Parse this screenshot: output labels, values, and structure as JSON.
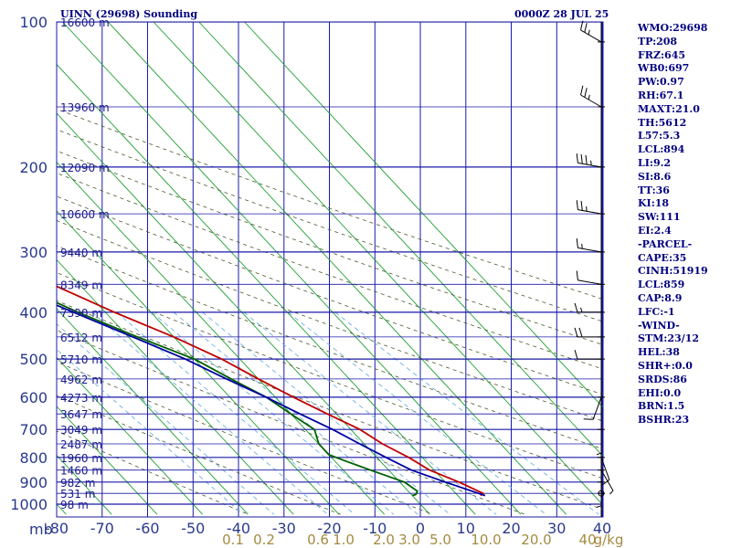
{
  "header": {
    "title": "UINN (29698) Sounding",
    "datetime": "0000Z 28 JUL 25"
  },
  "stats": [
    "WMO:29698",
    "TP:208",
    "FRZ:645",
    "WB0:697",
    "PW:0.97",
    "RH:67.1",
    "MAXT:21.0",
    "TH:5612",
    "L57:5.3",
    "LCL:894",
    "LI:9.2",
    "SI:8.6",
    "TT:36",
    "KI:18",
    "SW:111",
    "EI:2.4",
    "-PARCEL-",
    "CAPE:35",
    "CINH:51919",
    "LCL:859",
    "CAP:8.9",
    "LFC:-1",
    "-WIND-",
    "STM:23/12",
    "HEL:38",
    "SHR+:0.0",
    "SRDS:86",
    "EHI:0.0",
    "BRN:1.5",
    "BSHR:23"
  ],
  "chart_data": {
    "type": "line",
    "subtype": "skew-T log-P sounding",
    "pressure_axis": {
      "unit_label": "mb",
      "ticks": [
        100,
        200,
        300,
        400,
        500,
        600,
        700,
        800,
        900,
        1000
      ],
      "range": [
        100,
        1050
      ],
      "scale": "log"
    },
    "temperature_axis": {
      "ticks": [
        -80,
        -70,
        -60,
        -50,
        -40,
        -30,
        -20,
        -10,
        0,
        10,
        20,
        30,
        40
      ],
      "range": [
        -80,
        40
      ]
    },
    "height_labels": [
      {
        "p": 100,
        "label": "16600 m"
      },
      {
        "p": 150,
        "label": "13960 m"
      },
      {
        "p": 200,
        "label": "12090 m"
      },
      {
        "p": 250,
        "label": "10600 m"
      },
      {
        "p": 300,
        "label": "9440 m"
      },
      {
        "p": 350,
        "label": "8349 m"
      },
      {
        "p": 400,
        "label": "7390 m"
      },
      {
        "p": 450,
        "label": "6512 m"
      },
      {
        "p": 500,
        "label": "5710 m"
      },
      {
        "p": 550,
        "label": "4962 m"
      },
      {
        "p": 600,
        "label": "4273 m"
      },
      {
        "p": 650,
        "label": "3647 m"
      },
      {
        "p": 700,
        "label": "3049 m"
      },
      {
        "p": 750,
        "label": "2487 m"
      },
      {
        "p": 800,
        "label": "1960 m"
      },
      {
        "p": 850,
        "label": "1460 m"
      },
      {
        "p": 900,
        "label": "982 m"
      },
      {
        "p": 950,
        "label": "531 m"
      },
      {
        "p": 1000,
        "label": "98 m"
      }
    ],
    "mixing_ratio_labels": {
      "unit": "g/kg",
      "values": [
        "0.1",
        "0.2",
        "0.6",
        "1.0",
        "2.0",
        "3.0",
        "5.0",
        "10.0",
        "20.0",
        "40"
      ]
    },
    "series": [
      {
        "role": "temperature",
        "color": "#c00000",
        "points": [
          [
            100,
            -56
          ],
          [
            150,
            -50
          ],
          [
            185,
            -50
          ],
          [
            195,
            -58
          ],
          [
            205,
            -60
          ],
          [
            225,
            -56
          ],
          [
            250,
            -52
          ],
          [
            300,
            -44
          ],
          [
            350,
            -36
          ],
          [
            400,
            -28
          ],
          [
            450,
            -20
          ],
          [
            500,
            -14
          ],
          [
            550,
            -10
          ],
          [
            600,
            -6
          ],
          [
            650,
            -2
          ],
          [
            700,
            2
          ],
          [
            750,
            4
          ],
          [
            800,
            7
          ],
          [
            850,
            9
          ],
          [
            900,
            13
          ],
          [
            950,
            16
          ],
          [
            960,
            15
          ]
        ]
      },
      {
        "role": "dewpoint",
        "color": "#006000",
        "points": [
          [
            100,
            -74
          ],
          [
            150,
            -62
          ],
          [
            180,
            -60
          ],
          [
            195,
            -64
          ],
          [
            205,
            -66
          ],
          [
            230,
            -63
          ],
          [
            260,
            -58
          ],
          [
            300,
            -53
          ],
          [
            350,
            -44
          ],
          [
            400,
            -36
          ],
          [
            450,
            -28
          ],
          [
            500,
            -20
          ],
          [
            550,
            -16
          ],
          [
            600,
            -12
          ],
          [
            650,
            -10
          ],
          [
            700,
            -8
          ],
          [
            750,
            -10
          ],
          [
            790,
            -10
          ],
          [
            810,
            -8
          ],
          [
            850,
            -4
          ],
          [
            900,
            1
          ],
          [
            940,
            2
          ],
          [
            955,
            1
          ],
          [
            960,
            0
          ]
        ]
      },
      {
        "role": "parcel",
        "color": "#0000a0",
        "points": [
          [
            180,
            -82
          ],
          [
            200,
            -78
          ],
          [
            250,
            -66
          ],
          [
            300,
            -56
          ],
          [
            350,
            -46
          ],
          [
            400,
            -37
          ],
          [
            450,
            -29
          ],
          [
            500,
            -22
          ],
          [
            550,
            -17
          ],
          [
            600,
            -12
          ],
          [
            650,
            -8
          ],
          [
            700,
            -4
          ],
          [
            750,
            -1
          ],
          [
            800,
            2
          ],
          [
            850,
            5
          ],
          [
            900,
            10
          ],
          [
            950,
            15
          ],
          [
            960,
            16
          ]
        ]
      }
    ],
    "wind_barbs": [
      {
        "p": 110,
        "dir": 300,
        "kt": 25
      },
      {
        "p": 150,
        "dir": 300,
        "kt": 25
      },
      {
        "p": 200,
        "dir": 280,
        "kt": 35
      },
      {
        "p": 250,
        "dir": 280,
        "kt": 25
      },
      {
        "p": 300,
        "dir": 280,
        "kt": 15
      },
      {
        "p": 350,
        "dir": 280,
        "kt": 10
      },
      {
        "p": 400,
        "dir": 270,
        "kt": 15
      },
      {
        "p": 450,
        "dir": 270,
        "kt": 20
      },
      {
        "p": 500,
        "dir": 270,
        "kt": 10
      },
      {
        "p": 600,
        "dir": 200,
        "kt": 10
      },
      {
        "p": 700,
        "dir": 180,
        "kt": 5
      },
      {
        "p": 800,
        "dir": 160,
        "kt": 10
      },
      {
        "p": 850,
        "dir": 150,
        "kt": 5
      },
      {
        "p": 900,
        "dir": 180,
        "kt": 5
      },
      {
        "p": 950,
        "dir": 190,
        "kt": 0
      }
    ],
    "grid": true
  }
}
